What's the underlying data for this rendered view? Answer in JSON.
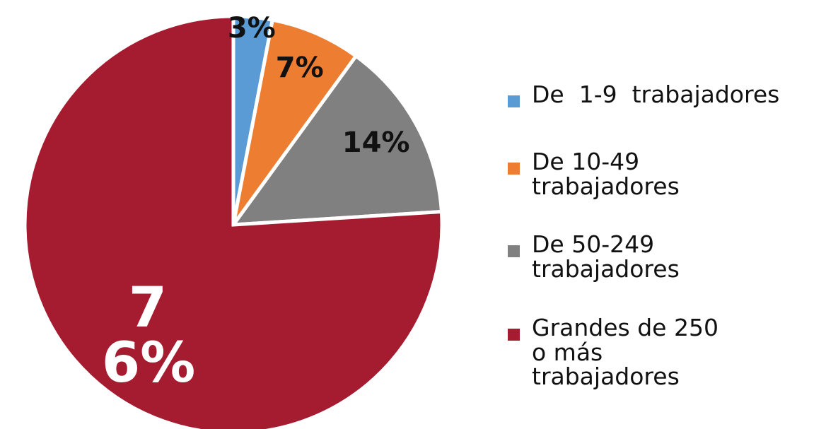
{
  "chart_data": {
    "type": "pie",
    "categories": [
      "De  1-9  trabajadores",
      "De 10-49 trabajadores",
      "De 50-249 trabajadores",
      "Grandes de 250 o más trabajadores"
    ],
    "values": [
      3,
      7,
      14,
      76
    ],
    "value_labels": [
      "3%",
      "7%",
      "14%",
      "76%"
    ],
    "colors": [
      "#5b9bd5",
      "#ed7d31",
      "#808080",
      "#a51c30"
    ],
    "legend": "right"
  }
}
